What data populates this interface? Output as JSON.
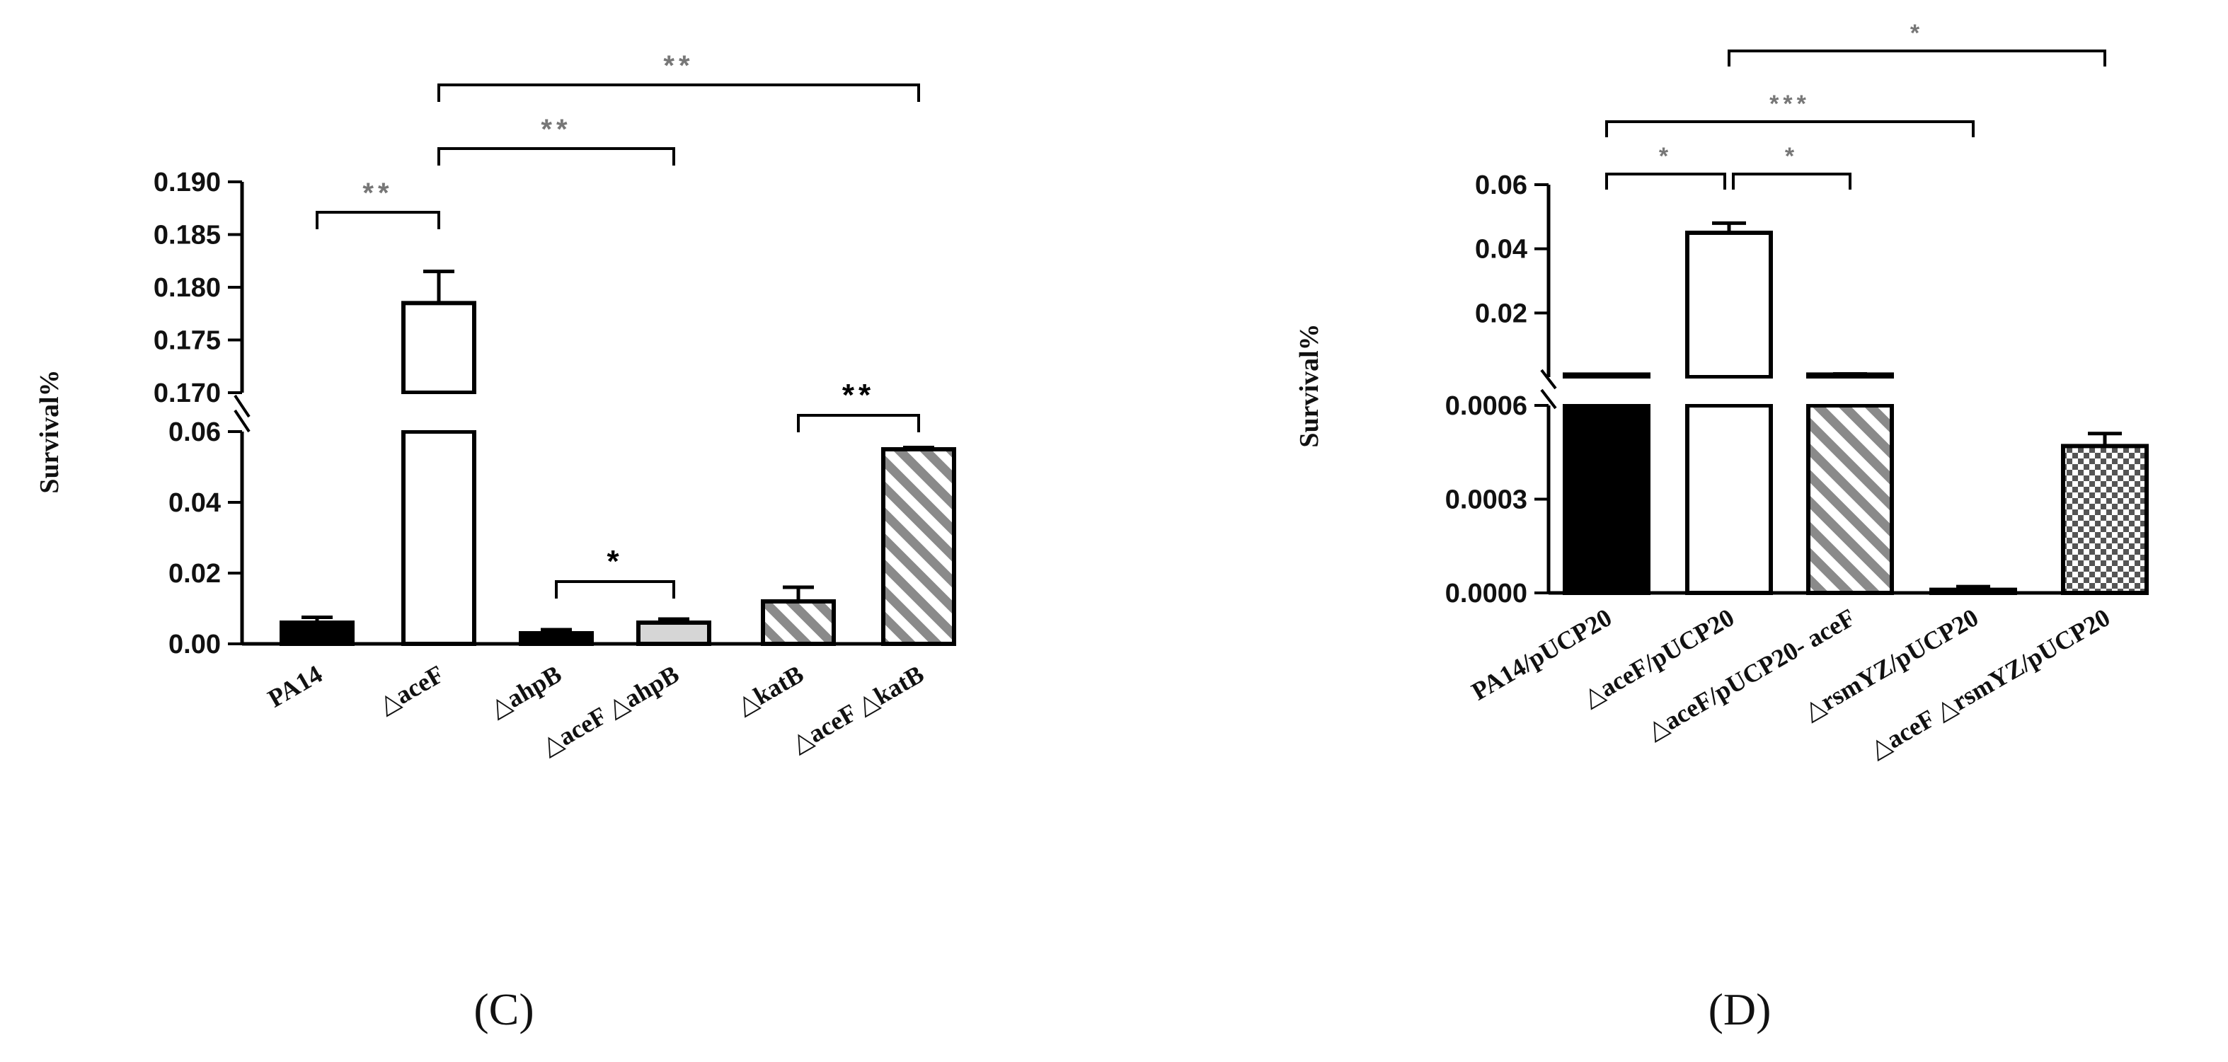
{
  "chart_data": [
    {
      "type": "bar",
      "panel_label": "(C)",
      "ylabel": "Survival%",
      "y_axis_break": true,
      "ylim_lower": [
        0,
        0.06
      ],
      "ylim_upper": [
        0.17,
        0.19
      ],
      "yticks_lower": [
        "0.00",
        "0.02",
        "0.04",
        "0.06"
      ],
      "yticks_upper": [
        "0.170",
        "0.175",
        "0.180",
        "0.185",
        "0.190"
      ],
      "categories": [
        "PA14",
        "△aceF",
        "△ahpB",
        "△aceF △ahpB",
        "△katB",
        "△aceF △katB"
      ],
      "values": [
        0.006,
        0.1785,
        0.003,
        0.006,
        0.012,
        0.055
      ],
      "errors": [
        0.0015,
        0.003,
        0.001,
        0.001,
        0.004,
        0.0005
      ],
      "fills": [
        "solid-black",
        "white",
        "solid-black",
        "light-gray",
        "diagonal-hatch",
        "diagonal-hatch"
      ],
      "significance": [
        {
          "from": 0,
          "to": 1,
          "label": "**"
        },
        {
          "from": 1,
          "to": 3,
          "label": "**"
        },
        {
          "from": 1,
          "to": 5,
          "label": "**"
        },
        {
          "from": 2,
          "to": 3,
          "label": "*"
        },
        {
          "from": 4,
          "to": 5,
          "label": "**"
        }
      ]
    },
    {
      "type": "bar",
      "panel_label": "(D)",
      "ylabel": "Survival%",
      "y_axis_break": true,
      "ylim_lower": [
        0,
        0.0006
      ],
      "ylim_upper": [
        0.0,
        0.06
      ],
      "yticks_lower": [
        "0.0000",
        "0.0003",
        "0.0006"
      ],
      "yticks_upper": [
        "0.02",
        "0.04",
        "0.06"
      ],
      "categories": [
        "PA14/pUCP20",
        "△aceF/pUCP20",
        "△aceF/pUCP20- aceF",
        "△rsmYZ/pUCP20",
        "△aceF △rsmYZ/pUCP20"
      ],
      "values": [
        0.0008,
        0.045,
        0.0008,
        1e-05,
        0.00047
      ],
      "errors": [
        0.0,
        0.003,
        0.0002,
        1e-05,
        4e-05
      ],
      "fills": [
        "solid-black",
        "white",
        "diagonal-hatch",
        "solid-black",
        "checker"
      ],
      "significance": [
        {
          "from": 0,
          "to": 1,
          "label": "*"
        },
        {
          "from": 1,
          "to": 2,
          "label": "*"
        },
        {
          "from": 0,
          "to": 3,
          "label": "***"
        },
        {
          "from": 1,
          "to": 4,
          "label": "*"
        }
      ]
    }
  ]
}
